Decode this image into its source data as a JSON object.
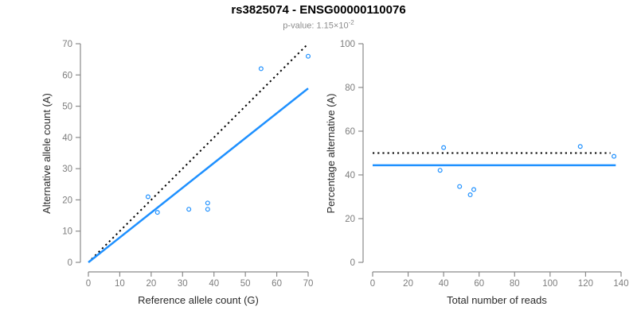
{
  "header": {
    "title": "rs3825074 - ENSG00000110076",
    "subtitle_prefix": "p-value: 1.15×10",
    "subtitle_exponent": "-2"
  },
  "colors": {
    "accent_blue": "#1e90ff",
    "line_black": "#000000",
    "axis_gray": "#8a8a8a",
    "tick_label_gray": "#7d7d7d",
    "axis_title_color": "#2b2b2b"
  },
  "chart_data": [
    {
      "type": "scatter",
      "name": "allele-count-plot",
      "xlabel": "Reference allele count (G)",
      "ylabel": "Alternative allele count (A)",
      "xlim": [
        0,
        70
      ],
      "ylim": [
        0,
        70
      ],
      "x_ticks": [
        0,
        10,
        20,
        30,
        40,
        50,
        60,
        70
      ],
      "y_ticks": [
        0,
        10,
        20,
        30,
        40,
        50,
        60,
        70
      ],
      "marker": "open-circle",
      "grid": false,
      "legend": null,
      "points": [
        [
          19,
          21
        ],
        [
          22,
          16
        ],
        [
          32,
          17
        ],
        [
          38,
          19
        ],
        [
          38,
          17
        ],
        [
          55,
          62
        ],
        [
          70,
          66
        ]
      ],
      "lines": [
        {
          "name": "identity-line",
          "style": "dotted",
          "color": "black",
          "x1": 1,
          "y1": 1,
          "x2": 70,
          "y2": 70
        },
        {
          "name": "fit-line",
          "style": "solid",
          "color": "blue",
          "x1": 0,
          "y1": 0,
          "x2": 70,
          "y2": 55.7
        }
      ]
    },
    {
      "type": "scatter",
      "name": "percentage-plot",
      "xlabel": "Total number of reads",
      "ylabel": "Percentage alternative (A)",
      "xlim": [
        0,
        140
      ],
      "ylim": [
        0,
        100
      ],
      "x_ticks": [
        0,
        20,
        40,
        60,
        80,
        100,
        120,
        140
      ],
      "y_ticks": [
        0,
        20,
        40,
        60,
        80,
        100
      ],
      "marker": "open-circle",
      "grid": false,
      "legend": null,
      "points": [
        [
          38,
          42.1
        ],
        [
          40,
          52.5
        ],
        [
          49,
          34.7
        ],
        [
          55,
          30.9
        ],
        [
          57,
          33.3
        ],
        [
          117,
          53.0
        ],
        [
          136,
          48.5
        ]
      ],
      "lines": [
        {
          "name": "expected-50pct-line",
          "style": "dotted",
          "color": "black",
          "x1": 0,
          "y1": 50,
          "x2": 134,
          "y2": 50
        },
        {
          "name": "fit-line",
          "style": "solid",
          "color": "blue",
          "x1": 0,
          "y1": 44.4,
          "x2": 137,
          "y2": 44.4
        }
      ]
    }
  ]
}
